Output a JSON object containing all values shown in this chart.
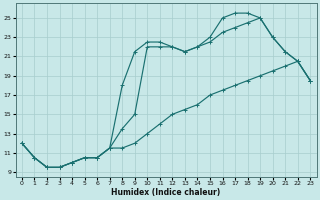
{
  "xlabel": "Humidex (Indice chaleur)",
  "bg_color": "#c8e8e8",
  "grid_color": "#a8cece",
  "line_color": "#1a7070",
  "xlim": [
    -0.5,
    23.5
  ],
  "ylim": [
    8.5,
    26.5
  ],
  "xticks": [
    0,
    1,
    2,
    3,
    4,
    5,
    6,
    7,
    8,
    9,
    10,
    11,
    12,
    13,
    14,
    15,
    16,
    17,
    18,
    19,
    20,
    21,
    22,
    23
  ],
  "yticks": [
    9,
    11,
    13,
    15,
    17,
    19,
    21,
    23,
    25
  ],
  "line1_x": [
    0,
    1,
    2,
    3,
    4,
    5,
    6,
    7,
    8,
    9,
    10,
    11,
    12,
    13,
    14,
    15,
    16,
    17,
    18,
    19,
    20,
    21,
    22,
    23
  ],
  "line1_y": [
    12.0,
    10.5,
    9.5,
    9.5,
    10.0,
    10.5,
    10.5,
    11.5,
    11.5,
    12.0,
    13.0,
    14.0,
    15.0,
    15.5,
    16.0,
    17.0,
    17.5,
    18.0,
    18.5,
    19.0,
    19.5,
    20.0,
    20.5,
    18.5
  ],
  "line2_x": [
    0,
    1,
    2,
    3,
    4,
    5,
    6,
    7,
    8,
    9,
    10,
    11,
    12,
    13,
    14,
    15,
    16,
    17,
    18,
    19,
    20,
    21,
    22,
    23
  ],
  "line2_y": [
    12.0,
    10.5,
    9.5,
    9.5,
    10.0,
    10.5,
    10.5,
    11.5,
    18.0,
    21.5,
    22.5,
    22.5,
    22.0,
    21.5,
    22.0,
    22.5,
    23.5,
    24.0,
    24.5,
    25.0,
    23.0,
    21.5,
    20.5,
    18.5
  ],
  "line3_x": [
    0,
    1,
    2,
    3,
    4,
    5,
    6,
    7,
    8,
    9,
    10,
    11,
    12,
    13,
    14,
    15,
    16,
    17,
    18,
    19,
    20,
    21,
    22,
    23
  ],
  "line3_y": [
    12.0,
    10.5,
    9.5,
    9.5,
    10.0,
    10.5,
    10.5,
    11.5,
    13.5,
    15.0,
    22.0,
    22.0,
    22.0,
    21.5,
    22.0,
    23.0,
    25.0,
    25.5,
    25.5,
    25.0,
    23.0,
    21.5,
    20.5,
    18.5
  ]
}
